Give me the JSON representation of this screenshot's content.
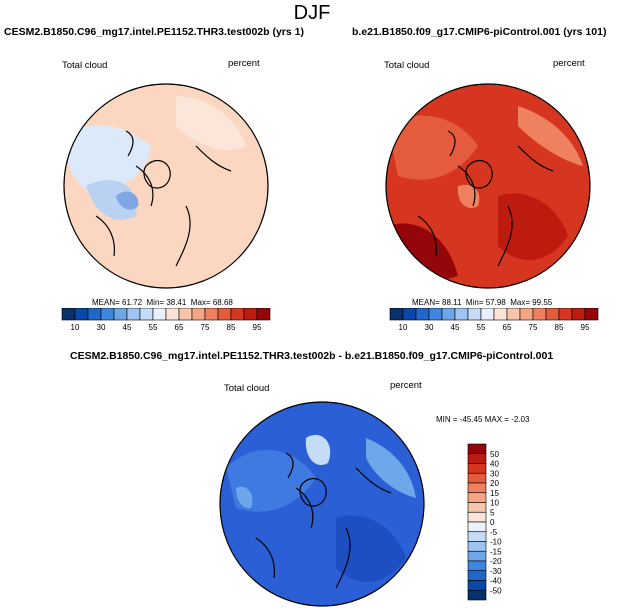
{
  "page": {
    "title": "DJF"
  },
  "chart_data": [
    {
      "type": "heatmap",
      "title": "CESM2.B1850.C96_mg17.intel.PE1152.THR3.test002b (yrs 1)",
      "left_label": "Total cloud",
      "right_label": "percent",
      "stats": {
        "mean_label": "MEAN=",
        "mean": "61.72",
        "min_label": "Min=",
        "min": "38.41",
        "max_label": "Max=",
        "max": "68.68"
      },
      "colorbar": {
        "orientation": "horizontal",
        "ticks": [
          "10",
          "30",
          "45",
          "55",
          "65",
          "75",
          "85",
          "95"
        ],
        "colors": [
          "#08306b",
          "#0b47a8",
          "#2166c9",
          "#3f87de",
          "#6ea6ea",
          "#9fc3f2",
          "#c6dbf7",
          "#e8f1fc",
          "#fbe3d6",
          "#f7c5ac",
          "#f4a582",
          "#ef8060",
          "#e55c3c",
          "#d6361f",
          "#bd1b10",
          "#94060a"
        ]
      },
      "dominant_colors": [
        "#fbd7c2",
        "#fce6da",
        "#dce9f8",
        "#b9d2f2",
        "#7fa7e6"
      ]
    },
    {
      "type": "heatmap",
      "title": "b.e21.B1850.f09_g17.CMIP6-piControl.001 (yrs 101)",
      "left_label": "Total cloud",
      "right_label": "percent",
      "stats": {
        "mean_label": "MEAN=",
        "mean": "88.11",
        "min_label": "Min=",
        "min": "57.98",
        "max_label": "Max=",
        "max": "99.55"
      },
      "colorbar": {
        "orientation": "horizontal",
        "ticks": [
          "10",
          "30",
          "45",
          "55",
          "65",
          "75",
          "85",
          "95"
        ],
        "colors": [
          "#08306b",
          "#0b47a8",
          "#2166c9",
          "#3f87de",
          "#6ea6ea",
          "#9fc3f2",
          "#c6dbf7",
          "#e8f1fc",
          "#fbe3d6",
          "#f7c5ac",
          "#f4a582",
          "#ef8060",
          "#e55c3c",
          "#d6361f",
          "#bd1b10",
          "#94060a"
        ]
      },
      "dominant_colors": [
        "#d6361f",
        "#e55c3c",
        "#bd1b10",
        "#ef8060",
        "#94060a"
      ]
    },
    {
      "type": "heatmap",
      "title": "CESM2.B1850.C96_mg17.intel.PE1152.THR3.test002b - b.e21.B1850.f09_g17.CMIP6-piControl.001",
      "left_label": "Total cloud",
      "right_label": "percent",
      "stats": {
        "min_label": "MIN =",
        "min": "-45.45",
        "max_label": "MAX =",
        "max": "-2.03"
      },
      "colorbar": {
        "orientation": "vertical",
        "ticks": [
          "50",
          "40",
          "30",
          "20",
          "15",
          "10",
          "5",
          "0",
          "-5",
          "-10",
          "-15",
          "-20",
          "-30",
          "-40",
          "-50"
        ],
        "colors": [
          "#94060a",
          "#bd1b10",
          "#d6361f",
          "#e55c3c",
          "#ef8060",
          "#f4a582",
          "#f7c5ac",
          "#fbe3d6",
          "#e8f1fc",
          "#c6dbf7",
          "#9fc3f2",
          "#6ea6ea",
          "#3f87de",
          "#2166c9",
          "#0b47a8",
          "#08306b"
        ]
      },
      "dominant_colors": [
        "#2a5fd6",
        "#3f7ae0",
        "#1d4fc2",
        "#6ea6ea",
        "#c6dbf7"
      ]
    }
  ]
}
